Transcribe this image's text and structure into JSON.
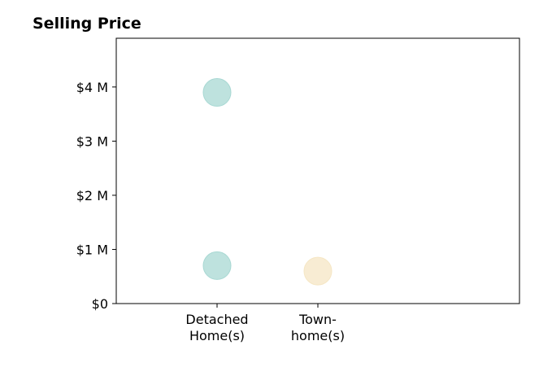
{
  "chart_data": {
    "type": "scatter",
    "title": "Selling Price",
    "xlabel": "",
    "ylabel": "",
    "categories": [
      [
        "Detached",
        "Home(s)"
      ],
      [
        "Town-",
        "home(s)"
      ]
    ],
    "ylim": [
      0,
      4.9
    ],
    "yticks": [
      {
        "value": 0,
        "label": "$0"
      },
      {
        "value": 1,
        "label": "$1 M"
      },
      {
        "value": 2,
        "label": "$2 M"
      },
      {
        "value": 3,
        "label": "$3 M"
      },
      {
        "value": 4,
        "label": "$4 M"
      }
    ],
    "points": [
      {
        "category_index": 0,
        "value": 3.9,
        "color": "#a8d8d3"
      },
      {
        "category_index": 0,
        "value": 0.7,
        "color": "#a8d8d3"
      },
      {
        "category_index": 1,
        "value": 0.6,
        "color": "#f5e6c4"
      }
    ],
    "grid": false,
    "legend": "none"
  }
}
